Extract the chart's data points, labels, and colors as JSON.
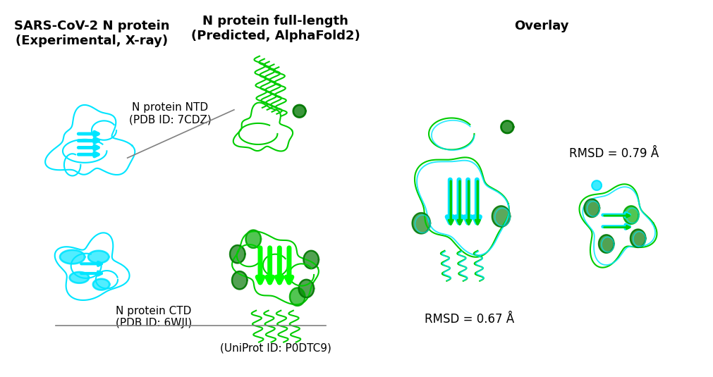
{
  "title_left": "SARS-CoV-2 N protein\n(Experimental, X-ray)",
  "title_center": "N protein full-length\n(Predicted, AlphaFold2)",
  "title_right": "Overlay",
  "label_ntd": "N protein NTD\n(PDB ID: 7CDZ)",
  "label_ctd": "N protein CTD\n(PDB ID: 6WJI)",
  "label_uniprot": "(UniProt ID: P0DTC9)",
  "rmsd_left": "RMSD = 0.67 Å",
  "rmsd_right": "RMSD = 0.79 Å",
  "bg_color": "#ffffff",
  "text_color": "#000000",
  "title_fontsize": 13,
  "label_fontsize": 11,
  "rmsd_fontsize": 12,
  "fig_width": 10.12,
  "fig_height": 5.35,
  "line_color": "#808080"
}
